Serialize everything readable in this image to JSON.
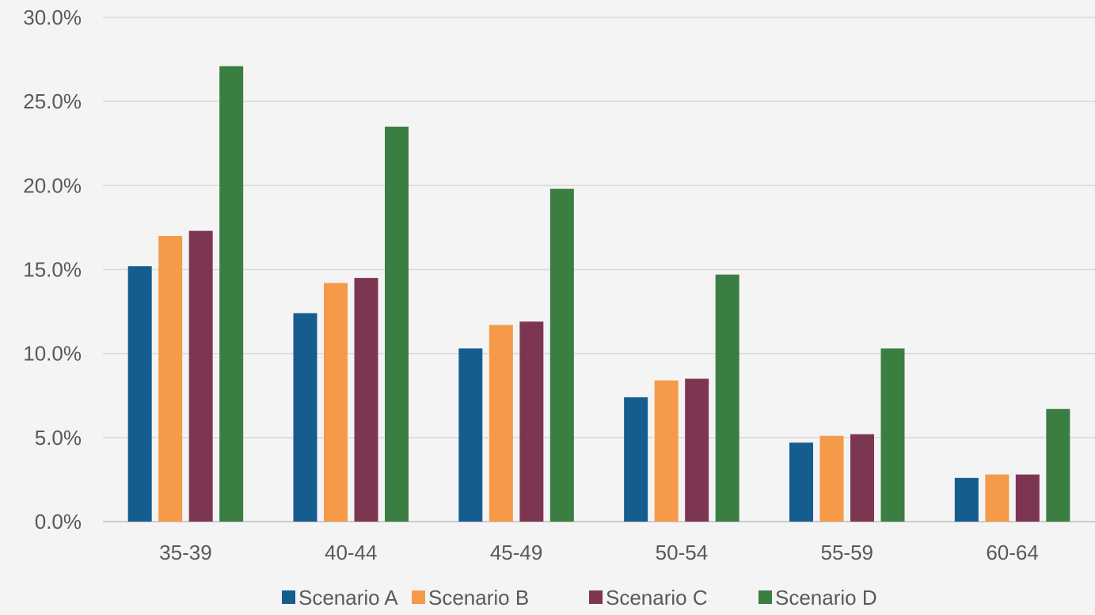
{
  "chart_data": {
    "type": "bar",
    "title": "",
    "xlabel": "",
    "ylabel": "",
    "categories": [
      "35-39",
      "40-44",
      "45-49",
      "50-54",
      "55-59",
      "60-64"
    ],
    "ylim": [
      0,
      30
    ],
    "y_ticks": [
      "0.0%",
      "5.0%",
      "10.0%",
      "15.0%",
      "20.0%",
      "25.0%",
      "30.0%"
    ],
    "y_tick_values": [
      0,
      5,
      10,
      15,
      20,
      25,
      30
    ],
    "grid": true,
    "legend_position": "bottom",
    "series": [
      {
        "name": "Scenario A",
        "color": "#155c8f",
        "values": [
          15.2,
          12.4,
          10.3,
          7.4,
          4.7,
          2.6
        ]
      },
      {
        "name": "Scenario B",
        "color": "#f59a48",
        "values": [
          17.0,
          14.2,
          11.7,
          8.4,
          5.1,
          2.8
        ]
      },
      {
        "name": "Scenario C",
        "color": "#7d3651",
        "values": [
          17.3,
          14.5,
          11.9,
          8.5,
          5.2,
          2.8
        ]
      },
      {
        "name": "Scenario D",
        "color": "#3a7e42",
        "values": [
          27.1,
          23.5,
          19.8,
          14.7,
          10.3,
          6.7
        ]
      }
    ]
  }
}
